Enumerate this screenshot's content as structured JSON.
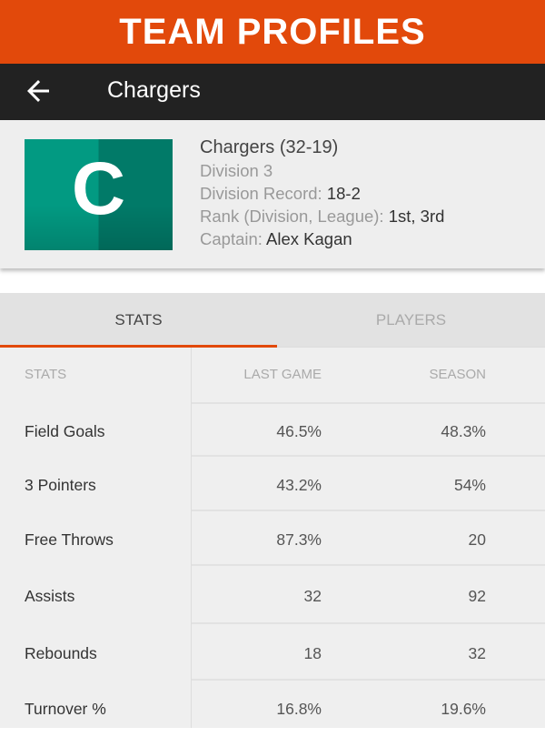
{
  "banner": {
    "title": "TEAM PROFILES",
    "color": "#e2490b"
  },
  "appbar": {
    "back_icon": "arrow-left-icon",
    "title": "Chargers"
  },
  "team": {
    "logo_letter": "C",
    "name": "Chargers",
    "record": "(32-19)",
    "division": "Division 3",
    "division_record_label": "Division Record:",
    "division_record": "18-2",
    "rank_label": "Rank (Division, League):",
    "rank": "1st, 3rd",
    "captain_label": "Captain:",
    "captain": "Alex Kagan"
  },
  "tabs": [
    {
      "label": "STATS",
      "active": true
    },
    {
      "label": "PLAYERS",
      "active": false
    }
  ],
  "stats": {
    "headers": [
      "STATS",
      "LAST GAME",
      "SEASON"
    ],
    "rows": [
      [
        "Field Goals",
        "46.5%",
        "48.3%"
      ],
      [
        "3 Pointers",
        "43.2%",
        "54%"
      ],
      [
        "Free Throws",
        "87.3%",
        "20"
      ],
      [
        "Assists",
        "32",
        "92"
      ],
      [
        "Rebounds",
        "18",
        "32"
      ],
      [
        "Turnover %",
        "16.8%",
        "19.6%"
      ]
    ]
  }
}
